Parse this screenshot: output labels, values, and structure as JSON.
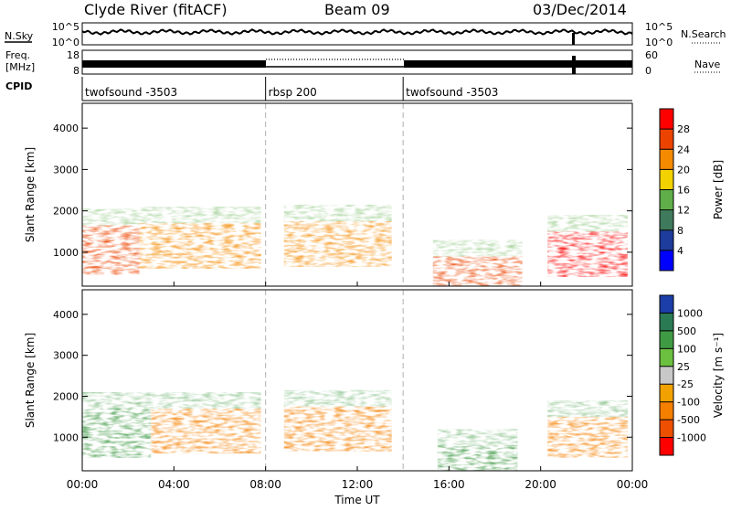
{
  "header": {
    "station": "Clyde River (fitACF)",
    "beam": "Beam 09",
    "date": "03/Dec/2014"
  },
  "top_panels": {
    "nsky_label": "N.Sky",
    "nsky_ticks": [
      "10^5",
      "10^0"
    ],
    "nsearch_label": "N.Search",
    "nsearch_ticks": [
      "10^5",
      "10^0"
    ],
    "freq_label": "Freq.",
    "freq_unit": "[MHz]",
    "freq_ticks": [
      "18",
      "8"
    ],
    "nave_label": "Nave",
    "nave_ticks": [
      "60",
      "0"
    ],
    "cpid_label": "CPID",
    "cpid_segments": [
      {
        "label": "twofsound -3503",
        "start_hour": 0,
        "end_hour": 8
      },
      {
        "label": "rbsp 200",
        "start_hour": 8,
        "end_hour": 14
      },
      {
        "label": "twofsound -3503",
        "start_hour": 14,
        "end_hour": 24
      }
    ]
  },
  "x_axis": {
    "label": "Time UT",
    "ticks": [
      "00:00",
      "04:00",
      "08:00",
      "12:00",
      "16:00",
      "20:00",
      "00:00"
    ],
    "range_hours": [
      0,
      24
    ]
  },
  "chart_data": [
    {
      "type": "heatmap",
      "name": "power",
      "ylabel": "Slant Range [km]",
      "yticks": [
        "1000",
        "2000",
        "3000",
        "4000"
      ],
      "ylim_km": [
        180,
        4600
      ],
      "xlim_hours": [
        0,
        24
      ],
      "colorbar": {
        "label": "Power [dB]",
        "ticks": [
          "4",
          "8",
          "12",
          "16",
          "20",
          "24",
          "28"
        ],
        "range": [
          0,
          32
        ],
        "colors": [
          "#0000ff",
          "#1e3c9c",
          "#3f7a5c",
          "#5fae4a",
          "#f2d200",
          "#f58a00",
          "#ec4400",
          "#ff0000"
        ]
      },
      "echo_bands": [
        {
          "start_hour": 0.0,
          "end_hour": 2.5,
          "low_km": 450,
          "high_km": 1650,
          "level": 26
        },
        {
          "start_hour": 2.5,
          "end_hour": 7.8,
          "low_km": 600,
          "high_km": 1700,
          "level": 22
        },
        {
          "start_hour": 8.8,
          "end_hour": 13.5,
          "low_km": 650,
          "high_km": 1750,
          "level": 23
        },
        {
          "start_hour": 15.3,
          "end_hour": 19.2,
          "low_km": 180,
          "high_km": 900,
          "level": 27
        },
        {
          "start_hour": 20.3,
          "end_hour": 23.8,
          "low_km": 400,
          "high_km": 1500,
          "level": 28
        }
      ]
    },
    {
      "type": "heatmap",
      "name": "velocity",
      "ylabel": "Slant Range [km]",
      "yticks": [
        "1000",
        "2000",
        "3000",
        "4000"
      ],
      "ylim_km": [
        180,
        4600
      ],
      "xlim_hours": [
        0,
        24
      ],
      "colorbar": {
        "label": "Velocity [m s⁻¹]",
        "ticks": [
          "1000",
          "500",
          "100",
          "25",
          "-25",
          "-100",
          "-500",
          "-1000"
        ],
        "colors": [
          "#1c3ea8",
          "#2a7a54",
          "#3f9a44",
          "#6cc040",
          "#c8c8c8",
          "#f2a200",
          "#f58000",
          "#ec5000",
          "#ff0000"
        ]
      },
      "echo_bands": [
        {
          "start_hour": 0.0,
          "end_hour": 3.0,
          "low_km": 500,
          "high_km": 1700,
          "level": 120
        },
        {
          "start_hour": 3.0,
          "end_hour": 7.8,
          "low_km": 600,
          "high_km": 1700,
          "level": -150
        },
        {
          "start_hour": 8.8,
          "end_hour": 13.5,
          "low_km": 650,
          "high_km": 1750,
          "level": -300
        },
        {
          "start_hour": 15.5,
          "end_hour": 19.0,
          "low_km": 180,
          "high_km": 800,
          "level": 150
        },
        {
          "start_hour": 20.3,
          "end_hour": 23.8,
          "low_km": 500,
          "high_km": 1500,
          "level": -350
        }
      ]
    }
  ]
}
